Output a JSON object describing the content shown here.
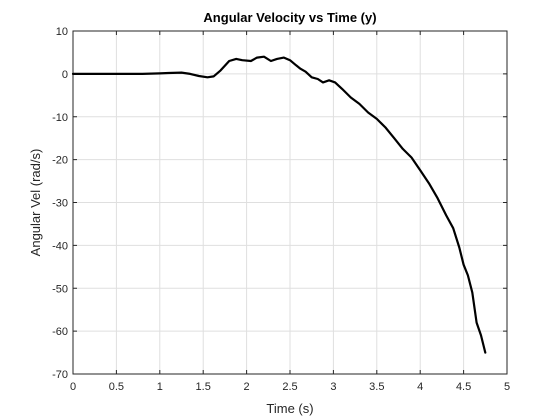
{
  "chart_data": {
    "type": "line",
    "title": "Angular Velocity vs Time (y)",
    "xlabel": "Time (s)",
    "ylabel": "Angular Vel (rad/s)",
    "xlim": [
      0,
      5
    ],
    "ylim": [
      -70,
      10
    ],
    "xticks": [
      0,
      0.5,
      1,
      1.5,
      2,
      2.5,
      3,
      3.5,
      4,
      4.5,
      5
    ],
    "xtick_labels": [
      "0",
      "0.5",
      "1",
      "1.5",
      "2",
      "2.5",
      "3",
      "3.5",
      "4",
      "4.5",
      "5"
    ],
    "yticks": [
      10,
      0,
      -10,
      -20,
      -30,
      -40,
      -50,
      -60,
      -70
    ],
    "ytick_labels": [
      "10",
      "0",
      "-10",
      "-20",
      "-30",
      "-40",
      "-50",
      "-60",
      "-70"
    ],
    "grid": true,
    "line_color": "#000000",
    "series": [
      {
        "x": [
          0,
          0.5,
          0.8,
          1.0,
          1.1,
          1.25,
          1.35,
          1.45,
          1.55,
          1.62,
          1.7,
          1.8,
          1.88,
          1.95,
          2.05,
          2.12,
          2.2,
          2.28,
          2.35,
          2.43,
          2.5,
          2.57,
          2.62,
          2.68,
          2.75,
          2.82,
          2.88,
          2.95,
          3.02,
          3.1,
          3.2,
          3.3,
          3.4,
          3.5,
          3.6,
          3.7,
          3.8,
          3.9,
          4.0,
          4.1,
          4.2,
          4.3,
          4.38,
          4.45,
          4.5,
          4.55,
          4.6,
          4.65,
          4.7,
          4.75
        ],
        "y": [
          0,
          0,
          0,
          0.1,
          0.2,
          0.3,
          0,
          -0.5,
          -0.8,
          -0.6,
          0.8,
          3.0,
          3.5,
          3.2,
          3.0,
          3.8,
          4.0,
          3.0,
          3.5,
          3.8,
          3.2,
          2.0,
          1.2,
          0.5,
          -0.8,
          -1.2,
          -2.0,
          -1.5,
          -2.0,
          -3.5,
          -5.5,
          -7.0,
          -9.0,
          -10.5,
          -12.5,
          -15.0,
          -17.5,
          -19.5,
          -22.5,
          -25.5,
          -29.0,
          -33.0,
          -36.0,
          -40.5,
          -44.5,
          -47.0,
          -51.0,
          -58.0,
          -61.0,
          -65.0
        ]
      }
    ]
  }
}
